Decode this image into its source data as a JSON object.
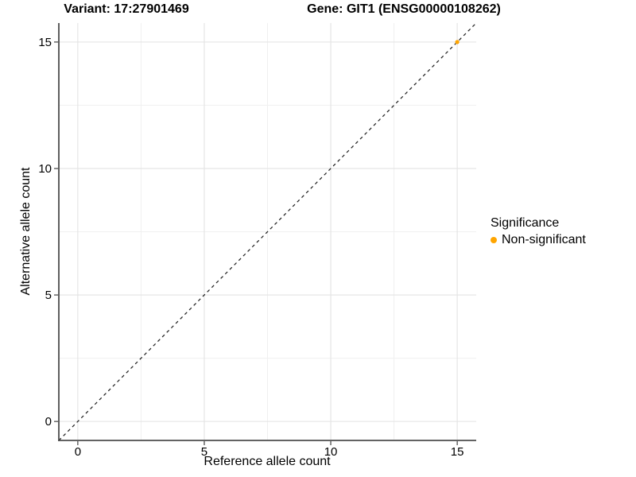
{
  "titles": {
    "variant": "Variant: 17:27901469",
    "gene": "Gene: GIT1 (ENSG00000108262)"
  },
  "axes": {
    "x_label": "Reference allele count",
    "y_label": "Alternative allele count",
    "x_tick_labels": [
      "0",
      "5",
      "10",
      "15"
    ],
    "y_tick_labels": [
      "0",
      "5",
      "10",
      "15"
    ]
  },
  "legend": {
    "title": "Significance",
    "items": [
      {
        "label": "Non-significant",
        "color": "#FFA500",
        "marker": "dot"
      }
    ]
  },
  "colors": {
    "point": "#FFA500",
    "grid_major": "#E3E3E3",
    "grid_minor": "#F0F0F0",
    "axis_line": "#4D4D4D",
    "tick_mark": "#4D4D4D",
    "reference_line": "#1A1A1A",
    "text": "#000000"
  },
  "chart_data": {
    "type": "scatter",
    "title": "Variant: 17:27901469 — Gene: GIT1 (ENSG00000108262)",
    "xlabel": "Reference allele count",
    "ylabel": "Alternative allele count",
    "xlim": [
      -0.75,
      15.75
    ],
    "ylim": [
      -0.75,
      15.75
    ],
    "x_ticks": [
      0,
      5,
      10,
      15
    ],
    "y_ticks": [
      0,
      5,
      10,
      15
    ],
    "x_minor_ticks": [
      2.5,
      7.5,
      12.5
    ],
    "y_minor_ticks": [
      2.5,
      7.5,
      12.5
    ],
    "grid": true,
    "legend_position": "right",
    "series": [
      {
        "name": "Non-significant",
        "color": "#FFA500",
        "points": [
          [
            15,
            15
          ]
        ]
      }
    ],
    "reference_line": {
      "type": "identity",
      "style": "dashed",
      "from": [
        -0.75,
        -0.75
      ],
      "to": [
        15.75,
        15.75
      ]
    }
  }
}
